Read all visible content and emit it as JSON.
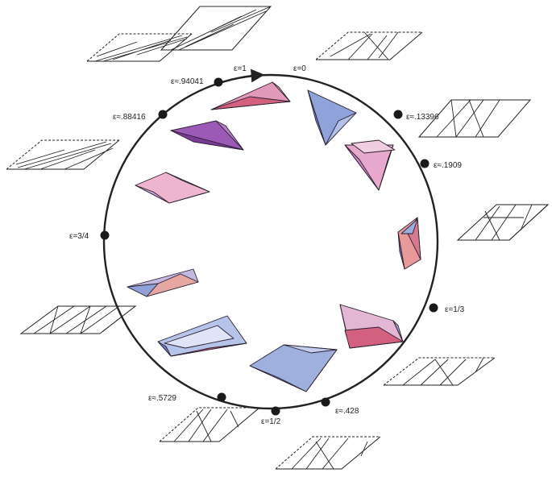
{
  "labels": {
    "e1": "ε=1",
    "e0": "ε=0",
    "e94041": "ε≈.94041",
    "e88416": "ε≈.88416",
    "e13396": "ε≈.13396",
    "e1909": "ε≈.1909",
    "e3_4": "ε=3/4",
    "e1_3": "ε=1/3",
    "e5729": "ε≈.5729",
    "e1_2": "ε=1/2",
    "e428": "ε≈.428"
  },
  "colors": {
    "ring": "#222222",
    "blue": "#8fa2da",
    "pink": "#e19ab9",
    "purple": "#8a4aa6",
    "salmon": "#e89a9a",
    "rose": "#d4607f"
  }
}
